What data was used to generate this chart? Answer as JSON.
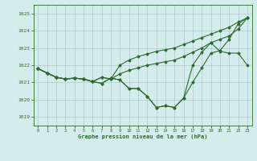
{
  "xlabel": "Graphe pression niveau de la mer (hPa)",
  "bg_color": "#d5ecec",
  "grid_color": "#aacccc",
  "line_color": "#2d6b2d",
  "ylim": [
    1018.5,
    1025.5
  ],
  "xlim": [
    -0.5,
    23.5
  ],
  "yticks": [
    1019,
    1020,
    1021,
    1022,
    1023,
    1024,
    1025
  ],
  "xticks": [
    0,
    1,
    2,
    3,
    4,
    5,
    6,
    7,
    8,
    9,
    10,
    11,
    12,
    13,
    14,
    15,
    16,
    17,
    18,
    19,
    20,
    21,
    22,
    23
  ],
  "series": [
    [
      1021.8,
      1021.55,
      1021.3,
      1021.2,
      1021.25,
      1021.2,
      1021.05,
      1020.95,
      1021.25,
      1021.15,
      1020.65,
      1020.65,
      1020.2,
      1019.55,
      1019.65,
      1019.55,
      1020.1,
      1021.0,
      1021.85,
      1022.7,
      1022.85,
      1023.5,
      1024.4,
      1024.75
    ],
    [
      1021.8,
      1021.55,
      1021.3,
      1021.2,
      1021.25,
      1021.2,
      1021.05,
      1020.95,
      1021.25,
      1021.15,
      1020.65,
      1020.65,
      1020.2,
      1019.55,
      1019.65,
      1019.55,
      1020.1,
      1022.0,
      1022.75,
      1023.3,
      1022.8,
      1022.7,
      1022.7,
      1022.0
    ],
    [
      1021.8,
      1021.55,
      1021.3,
      1021.2,
      1021.25,
      1021.2,
      1021.05,
      1021.3,
      1021.2,
      1021.5,
      1021.7,
      1021.85,
      1022.0,
      1022.1,
      1022.2,
      1022.3,
      1022.5,
      1022.75,
      1023.0,
      1023.3,
      1023.5,
      1023.7,
      1024.1,
      1024.75
    ],
    [
      1021.8,
      1021.55,
      1021.3,
      1021.2,
      1021.25,
      1021.2,
      1021.05,
      1021.3,
      1021.2,
      1022.0,
      1022.3,
      1022.5,
      1022.65,
      1022.8,
      1022.9,
      1023.0,
      1023.2,
      1023.4,
      1023.6,
      1023.8,
      1024.0,
      1024.2,
      1024.5,
      1024.75
    ]
  ]
}
